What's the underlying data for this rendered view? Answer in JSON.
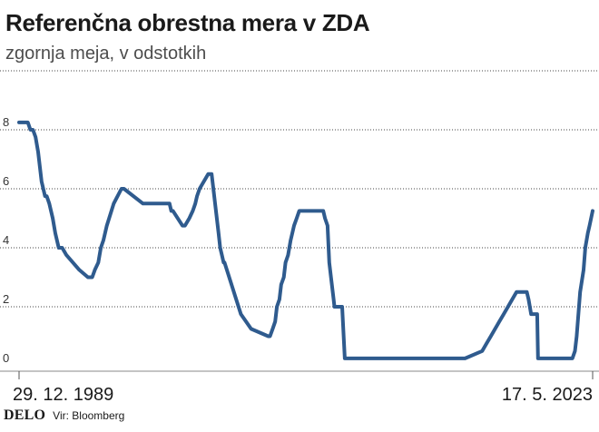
{
  "header": {
    "title": "Referenčna obrestna mera v ZDA",
    "subtitle": "zgornja meja, v odstotkih"
  },
  "footer": {
    "logo": "DELO",
    "source": "Vir: Bloomberg"
  },
  "colors": {
    "line": "#2f5b8e",
    "grid": "#444444",
    "axis": "#888888"
  },
  "chart_data": {
    "type": "line",
    "title": "Referenčna obrestna mera v ZDA",
    "subtitle": "zgornja meja, v odstotkih",
    "x_tick_labels": [
      "29. 12. 1989",
      "17. 5. 2023"
    ],
    "y_ticks": [
      0,
      2,
      4,
      6,
      8
    ],
    "ylim": [
      0,
      10
    ],
    "xlim": [
      1989.99,
      2023.38
    ],
    "grid": "horizontal dashed",
    "series": [
      {
        "x": [
          1989.99,
          1990.5,
          1990.65,
          1990.8,
          1990.95,
          1991.1,
          1991.2,
          1991.3,
          1991.5,
          1991.6,
          1991.75,
          1991.95,
          1992.1,
          1992.3,
          1992.5,
          1992.75,
          1993.5,
          1994.0,
          1994.1,
          1994.25,
          1994.4,
          1994.6,
          1994.75,
          1994.9,
          1995.1,
          1995.5,
          1995.95,
          1996.1,
          1997.2,
          1998.75,
          1998.85,
          1998.95,
          1999.5,
          1999.65,
          1999.9,
          2000.1,
          2000.25,
          2000.35,
          2000.5,
          2001.0,
          2001.1,
          2001.2,
          2001.3,
          2001.4,
          2001.5,
          2001.6,
          2001.7,
          2001.8,
          2001.9,
          2001.95,
          2002.9,
          2003.5,
          2004.5,
          2004.6,
          2004.75,
          2004.9,
          2005.0,
          2005.15,
          2005.25,
          2005.4,
          2005.5,
          2005.65,
          2005.8,
          2005.9,
          2006.0,
          2006.15,
          2006.3,
          2006.5,
          2007.7,
          2007.8,
          2007.95,
          2008.05,
          2008.15,
          2008.3,
          2008.35,
          2008.8,
          2008.95,
          2015.95,
          2016.95,
          2017.2,
          2017.45,
          2017.45,
          2017.7,
          2017.95,
          2018.2,
          2018.45,
          2018.7,
          2018.95,
          2019.55,
          2019.65,
          2019.8,
          2020.15,
          2020.2,
          2022.2,
          2022.35,
          2022.45,
          2022.55,
          2022.65,
          2022.85,
          2022.95,
          2023.1,
          2023.2,
          2023.38
        ],
        "y": [
          8.25,
          8.25,
          8.0,
          8.0,
          7.75,
          7.25,
          6.75,
          6.25,
          5.75,
          5.75,
          5.5,
          5.0,
          4.5,
          4.0,
          4.0,
          3.75,
          3.25,
          3.0,
          3.0,
          3.0,
          3.25,
          3.5,
          4.0,
          4.25,
          4.75,
          5.5,
          6.0,
          6.0,
          5.5,
          5.5,
          5.25,
          5.25,
          4.75,
          4.75,
          5.0,
          5.25,
          5.5,
          5.75,
          6.0,
          6.5,
          6.5,
          6.5,
          6.0,
          5.5,
          5.0,
          4.5,
          4.0,
          3.75,
          3.5,
          3.5,
          1.75,
          1.25,
          1.0,
          1.0,
          1.25,
          1.5,
          2.0,
          2.25,
          2.75,
          3.0,
          3.5,
          3.75,
          4.25,
          4.5,
          4.75,
          5.0,
          5.25,
          5.25,
          5.25,
          5.0,
          4.75,
          3.5,
          3.0,
          2.25,
          2.0,
          2.0,
          0.25,
          0.25,
          0.5,
          0.75,
          1.0,
          1.0,
          1.25,
          1.5,
          1.75,
          2.0,
          2.25,
          2.5,
          2.5,
          2.25,
          1.75,
          1.75,
          0.25,
          0.25,
          0.5,
          1.0,
          1.75,
          2.5,
          3.25,
          4.0,
          4.5,
          4.75,
          5.25
        ]
      }
    ]
  }
}
